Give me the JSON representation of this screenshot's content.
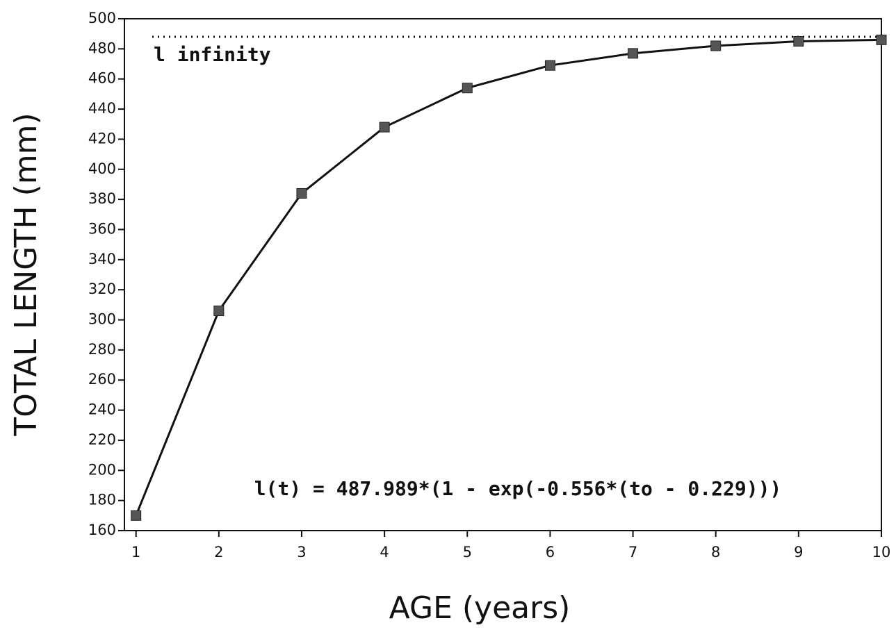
{
  "chart_data": {
    "type": "line",
    "x_label": "AGE (years)",
    "y_label": "TOTAL LENGTH (mm)",
    "x": [
      1,
      2,
      3,
      4,
      5,
      6,
      7,
      8,
      9,
      10
    ],
    "series": [
      {
        "color": "#111111",
        "marker_color": "#555555",
        "values": [
          170,
          306,
          384,
          428,
          454,
          469,
          477,
          482,
          485,
          486
        ]
      }
    ],
    "xlim": [
      0.86,
      10
    ],
    "xticks": [
      1,
      2,
      3,
      4,
      5,
      6,
      7,
      8,
      9,
      10
    ],
    "ylim": [
      160,
      500
    ],
    "yticks": [
      160,
      180,
      200,
      220,
      240,
      260,
      280,
      300,
      320,
      340,
      360,
      380,
      400,
      420,
      440,
      460,
      480,
      500
    ],
    "reference_line": {
      "value": 488,
      "label": "l infinity"
    },
    "annotation": "l(t) = 487.989*(1 - exp(-0.556*(to - 0.229)))"
  }
}
